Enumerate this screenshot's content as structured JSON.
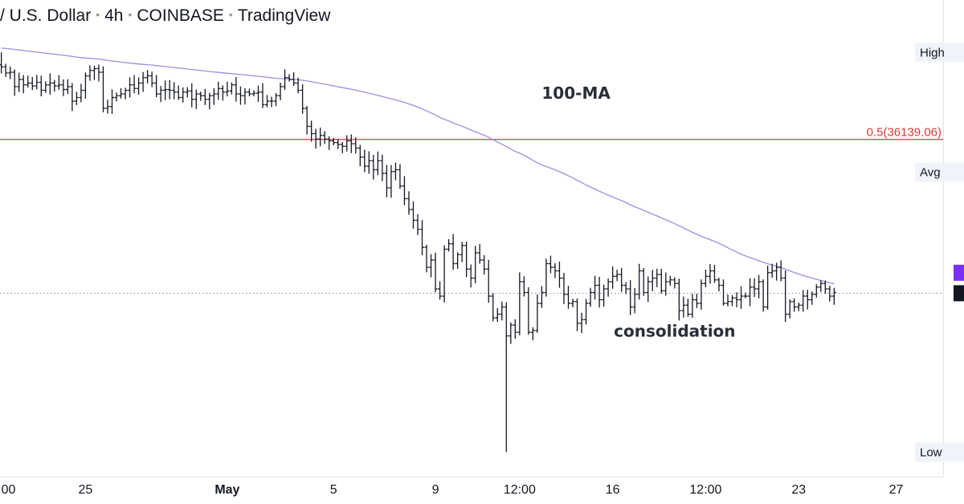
{
  "header": {
    "symbol": "/ U.S. Dollar",
    "interval": "4h",
    "exchange": "COINBASE",
    "platform": "TradingView"
  },
  "chart_data": {
    "type": "ohlc",
    "title": "",
    "x_labels": [
      {
        "i": 0,
        "label": "00",
        "bold": false
      },
      {
        "i": 19,
        "label": "25",
        "bold": false
      },
      {
        "i": 51,
        "label": "May",
        "bold": true
      },
      {
        "i": 75,
        "label": "5",
        "bold": false
      },
      {
        "i": 98,
        "label": "9",
        "bold": false
      },
      {
        "i": 117,
        "label": "12:00",
        "bold": false
      },
      {
        "i": 138,
        "label": "16",
        "bold": false
      },
      {
        "i": 159,
        "label": "12:00",
        "bold": false
      },
      {
        "i": 180,
        "label": "23",
        "bold": false
      },
      {
        "i": 202,
        "label": "27",
        "bold": false
      }
    ],
    "y_range": [
      27400,
      39400
    ],
    "x_range": [
      -0.3,
      212.6
    ],
    "axis_tags": {
      "high": "High",
      "avg": "Avg",
      "low": "Low"
    },
    "high_value": 38550,
    "avg_value": 35230,
    "low_value": 27480,
    "fib_level": {
      "label": "0.5(36139.06)",
      "value": 36139.06,
      "color": "#d63a3a"
    },
    "current_price": 31880,
    "ma_label": "100-MA",
    "ma_color": "#9c8fe0",
    "consolidation_label": "consolidation",
    "consolidation_anchor": {
      "i": 152,
      "value": 30680
    },
    "ma_anchor": {
      "i": 122,
      "value": 37270
    },
    "bar_color": "#131722",
    "closes": [
      38150,
      37980,
      38000,
      37600,
      37800,
      37650,
      37700,
      37620,
      37720,
      37500,
      37650,
      37700,
      37620,
      37650,
      37520,
      37600,
      37200,
      37300,
      37500,
      37900,
      38050,
      38100,
      38000,
      37000,
      37050,
      37300,
      37350,
      37400,
      37500,
      37650,
      37550,
      37700,
      37850,
      37900,
      37700,
      37400,
      37500,
      37520,
      37500,
      37450,
      37300,
      37450,
      37480,
      37250,
      37400,
      37350,
      37250,
      37350,
      37400,
      37550,
      37450,
      37480,
      37650,
      37400,
      37350,
      37450,
      37400,
      37420,
      37450,
      37100,
      37200,
      37200,
      37350,
      37600,
      37850,
      37800,
      37700,
      37500,
      37000,
      36500,
      36300,
      36150,
      36250,
      36150,
      36100,
      36050,
      36000,
      35950,
      36100,
      36020,
      35900,
      35650,
      35400,
      35550,
      35300,
      35550,
      35200,
      34800,
      35250,
      35300,
      34850,
      34500,
      34200,
      33900,
      33650,
      33150,
      32600,
      32800,
      32000,
      31800,
      33100,
      33250,
      32700,
      32950,
      33200,
      32550,
      32300,
      33000,
      32800,
      32550,
      31800,
      31200,
      31300,
      31500,
      30700,
      31000,
      30800,
      32200,
      31900,
      30800,
      30850,
      31600,
      31900,
      32700,
      32600,
      32500,
      32300,
      31850,
      31600,
      31650,
      31050,
      31150,
      31600,
      31900,
      32100,
      31700,
      32000,
      32200,
      32350,
      32400,
      32100,
      32000,
      31500,
      31850,
      32500,
      31900,
      32200,
      32300,
      32400,
      31950,
      32200,
      32250,
      32150,
      31400,
      31550,
      31300,
      31700,
      31600,
      32150,
      32350,
      32500,
      32250,
      32100,
      31600,
      31650,
      31750,
      31700,
      31800,
      31800,
      32050,
      32000,
      32200,
      31500,
      32450,
      32500,
      32600,
      32300,
      31300,
      31650,
      31500,
      31550,
      31800,
      31700,
      31850,
      32050,
      32150,
      32000,
      31800,
      31900
    ]
  }
}
